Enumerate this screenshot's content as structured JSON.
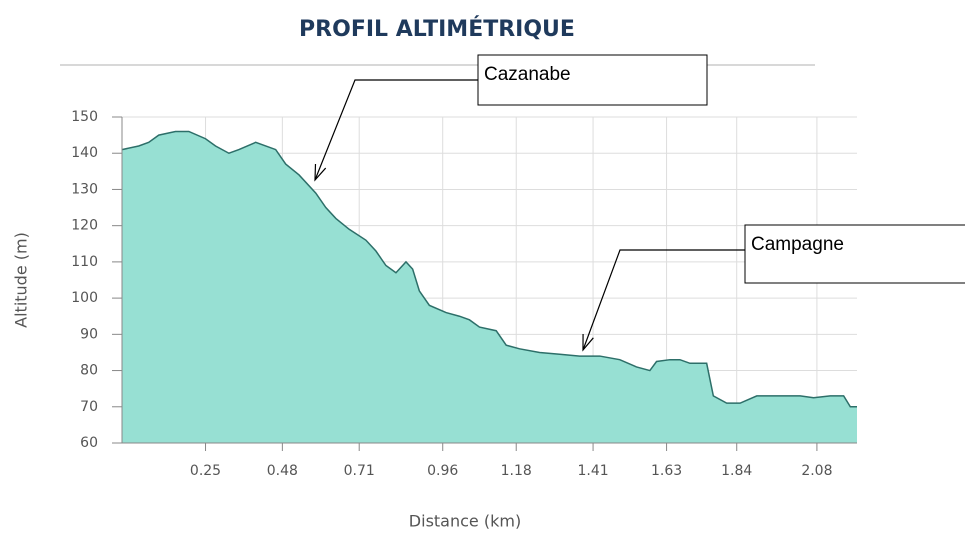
{
  "chart_data": {
    "type": "area",
    "title": "PROFIL ALTIMÉTRIQUE",
    "x_label": "Distance (km)",
    "y_label": "Altitude (m)",
    "x": [
      0,
      0.05,
      0.08,
      0.11,
      0.16,
      0.2,
      0.25,
      0.28,
      0.32,
      0.35,
      0.4,
      0.43,
      0.46,
      0.49,
      0.53,
      0.58,
      0.61,
      0.64,
      0.68,
      0.73,
      0.76,
      0.79,
      0.82,
      0.85,
      0.87,
      0.89,
      0.92,
      0.97,
      1.01,
      1.04,
      1.07,
      1.12,
      1.15,
      1.19,
      1.25,
      1.31,
      1.37,
      1.43,
      1.49,
      1.54,
      1.58,
      1.6,
      1.64,
      1.67,
      1.7,
      1.75,
      1.77,
      1.81,
      1.85,
      1.9,
      1.97,
      2.03,
      2.07,
      2.12,
      2.16,
      2.18,
      2.2
    ],
    "series": [
      {
        "color": "#97e0d3",
        "line_color": "#2d6f69",
        "values": [
          141,
          142,
          143,
          145,
          146,
          146,
          144,
          142,
          140,
          141,
          143,
          142,
          141,
          137,
          134,
          129,
          125,
          122,
          119,
          116,
          113,
          109,
          107,
          110,
          108,
          102,
          98,
          96,
          95,
          94,
          92,
          91,
          87,
          86,
          85,
          84.5,
          84,
          84,
          83,
          81,
          80,
          82.5,
          83,
          83,
          82,
          82,
          73,
          71,
          71,
          73,
          73,
          73,
          72.5,
          73,
          73,
          70,
          70
        ]
      }
    ],
    "xlim": [
      0,
      2.2
    ],
    "xticks": [
      0.25,
      0.48,
      0.71,
      0.96,
      1.18,
      1.41,
      1.63,
      1.84,
      2.08
    ],
    "ylim": [
      60,
      150
    ],
    "yticks": [
      60,
      70,
      80,
      90,
      100,
      110,
      120,
      130,
      140,
      150
    ],
    "grid": true,
    "annotations": [
      {
        "text": "Cazanabe"
      },
      {
        "text": "Campagne"
      }
    ]
  }
}
